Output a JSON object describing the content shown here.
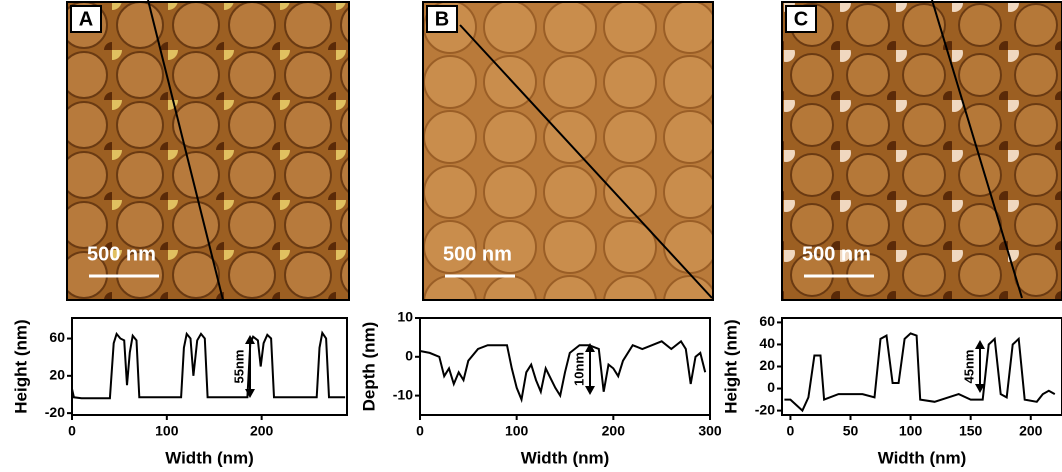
{
  "chart_data": [
    {
      "type": "line",
      "panel": "A",
      "scale_bar": "500 nm",
      "annotation": "55nm",
      "x_label": "Width (nm)",
      "y_label": "Height (nm)",
      "xlim": [
        0,
        290
      ],
      "ylim": [
        -22,
        82
      ],
      "xticks": [
        0,
        100,
        200
      ],
      "yticks": [
        -20,
        20,
        60
      ],
      "series": [
        {
          "color": "#000000",
          "x": [
            0,
            2,
            10,
            40,
            44,
            47,
            51,
            55,
            58,
            61,
            64,
            68,
            71,
            115,
            118,
            121,
            125,
            128,
            132,
            136,
            140,
            143,
            185,
            188,
            191,
            196,
            199,
            202,
            206,
            210,
            213,
            258,
            261,
            264,
            268,
            271,
            288
          ],
          "values": [
            6,
            -3,
            -4,
            -4,
            55,
            65,
            60,
            58,
            10,
            45,
            63,
            58,
            -3,
            -3,
            50,
            65,
            60,
            20,
            58,
            65,
            60,
            -3,
            -3,
            55,
            62,
            58,
            30,
            55,
            64,
            60,
            -3,
            -3,
            50,
            66,
            60,
            -3,
            -3
          ]
        }
      ]
    },
    {
      "type": "line",
      "panel": "B",
      "scale_bar": "500 nm",
      "annotation": "10nm",
      "x_label": "Width (nm)",
      "y_label": "Depth (nm)",
      "xlim": [
        0,
        300
      ],
      "ylim": [
        -15,
        10
      ],
      "xticks": [
        0,
        100,
        200,
        300
      ],
      "yticks": [
        -10,
        0,
        10
      ],
      "series": [
        {
          "color": "#000000",
          "x": [
            0,
            10,
            20,
            25,
            30,
            35,
            40,
            45,
            50,
            60,
            70,
            80,
            90,
            95,
            100,
            105,
            110,
            115,
            120,
            125,
            130,
            140,
            145,
            150,
            155,
            165,
            175,
            185,
            190,
            195,
            200,
            205,
            210,
            220,
            230,
            240,
            250,
            260,
            270,
            275,
            280,
            285,
            290,
            295
          ],
          "values": [
            1.5,
            1,
            0,
            -5,
            -3,
            -7,
            -4,
            -6,
            -1,
            2,
            3,
            3,
            3,
            -3,
            -8,
            -11,
            -4,
            -2,
            -6,
            -9,
            -3,
            -8,
            -10,
            -4,
            1,
            3,
            3,
            2,
            -9,
            -2,
            -3,
            -5,
            -1,
            3,
            2,
            3,
            4,
            2,
            4,
            2,
            -7,
            0,
            1,
            -4
          ]
        }
      ]
    },
    {
      "type": "line",
      "panel": "C",
      "scale_bar": "500 nm",
      "annotation": "45nm",
      "x_label": "Width (nm)",
      "y_label": "Height (nm)",
      "xlim": [
        -7,
        226
      ],
      "ylim": [
        -24,
        64
      ],
      "xticks": [
        0,
        50,
        100,
        150,
        200
      ],
      "yticks": [
        -20,
        0,
        20,
        40,
        60
      ],
      "series": [
        {
          "color": "#000000",
          "x": [
            -5,
            0,
            5,
            10,
            15,
            20,
            25,
            28,
            40,
            60,
            70,
            75,
            80,
            85,
            90,
            95,
            100,
            105,
            108,
            120,
            140,
            150,
            160,
            165,
            170,
            175,
            180,
            185,
            190,
            195,
            205,
            210,
            215,
            220
          ],
          "values": [
            -10,
            -10,
            -15,
            -20,
            -8,
            30,
            30,
            -10,
            -5,
            -5,
            -8,
            45,
            48,
            5,
            5,
            45,
            50,
            48,
            -10,
            -12,
            -5,
            -10,
            -10,
            40,
            45,
            -5,
            -8,
            40,
            45,
            -10,
            -12,
            -5,
            -2,
            -5
          ]
        }
      ]
    }
  ]
}
